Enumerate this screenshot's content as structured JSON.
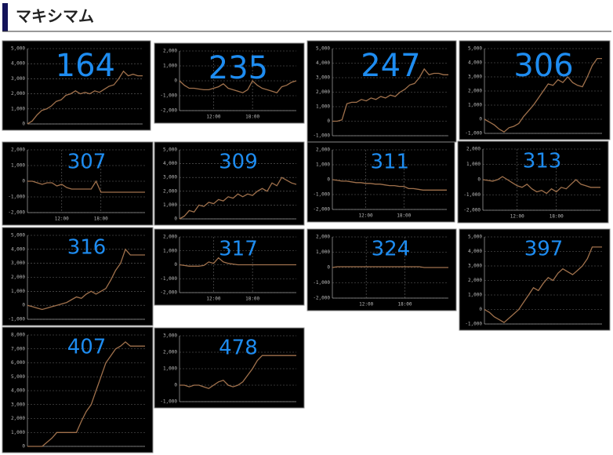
{
  "header": {
    "title": "マキシマム"
  },
  "chart_data": [
    {
      "type": "line",
      "title": "164",
      "color": "#a0714c",
      "ylim": [
        0,
        5000
      ],
      "yticks": [
        0,
        {
          "value": 1000,
          "label": "1,000"
        },
        {
          "value": 2000,
          "label": "2,000"
        },
        {
          "value": 3000,
          "label": "3,000"
        },
        {
          "value": 4000,
          "label": "4,000"
        },
        {
          "value": 5000,
          "label": "5,000"
        }
      ],
      "xlim": [
        0,
        24
      ],
      "grid": true,
      "values": [
        0,
        200,
        600,
        900,
        1000,
        1200,
        1500,
        1600,
        1900,
        2000,
        2200,
        2000,
        2100,
        2000,
        2200,
        2100,
        2300,
        2500,
        2600,
        3000,
        3500,
        3200,
        3300,
        3200,
        3200
      ]
    },
    {
      "type": "line",
      "title": "235",
      "color": "#a0714c",
      "ylim": [
        -2000,
        2000
      ],
      "yticks": [
        {
          "value": -2000,
          "label": "-2,000"
        },
        {
          "value": -1000,
          "label": "-1,000"
        },
        0,
        {
          "value": 1000,
          "label": "1,000"
        },
        {
          "value": 2000,
          "label": "2,000"
        }
      ],
      "xlim": [
        0,
        24
      ],
      "xticks": [
        {
          "value": 7,
          "label": "12:00"
        },
        {
          "value": 15,
          "label": "18:00"
        }
      ],
      "grid": true,
      "values": [
        0,
        -300,
        -500,
        -500,
        -550,
        -600,
        -600,
        -500,
        -400,
        -200,
        -500,
        -600,
        -700,
        -800,
        -600,
        0,
        -300,
        -500,
        -600,
        -700,
        -800,
        -400,
        -300,
        -100,
        0
      ]
    },
    {
      "type": "line",
      "title": "247",
      "color": "#a0714c",
      "ylim": [
        -1000,
        5000
      ],
      "yticks": [
        {
          "value": -1000,
          "label": "-1,000"
        },
        0,
        {
          "value": 1000,
          "label": "1,000"
        },
        {
          "value": 2000,
          "label": "2,000"
        },
        {
          "value": 3000,
          "label": "3,000"
        },
        {
          "value": 4000,
          "label": "4,000"
        },
        {
          "value": 5000,
          "label": "5,000"
        }
      ],
      "xlim": [
        0,
        24
      ],
      "grid": true,
      "values": [
        0,
        0,
        100,
        1200,
        1300,
        1300,
        1500,
        1400,
        1600,
        1500,
        1700,
        1600,
        1800,
        1700,
        2000,
        2200,
        2500,
        2600,
        3000,
        3600,
        3200,
        3300,
        3300,
        3200,
        3200
      ]
    },
    {
      "type": "line",
      "title": "306",
      "color": "#a0714c",
      "ylim": [
        -1000,
        5000
      ],
      "yticks": [
        {
          "value": -1000,
          "label": "-1,000"
        },
        0,
        {
          "value": 1000,
          "label": "1,000"
        },
        {
          "value": 2000,
          "label": "2,000"
        },
        {
          "value": 3000,
          "label": "3,000"
        },
        {
          "value": 4000,
          "label": "4,000"
        },
        {
          "value": 5000,
          "label": "5,000"
        }
      ],
      "xlim": [
        0,
        24
      ],
      "grid": true,
      "values": [
        0,
        -200,
        -400,
        -700,
        -900,
        -600,
        -500,
        -300,
        200,
        600,
        1000,
        1500,
        2000,
        2500,
        2400,
        2800,
        2600,
        3000,
        2600,
        2400,
        2300,
        3000,
        3800,
        4300,
        4300
      ]
    },
    {
      "type": "line",
      "title": "307",
      "color": "#a0714c",
      "ylim": [
        -2000,
        2000
      ],
      "yticks": [
        {
          "value": -2000,
          "label": "-2,000"
        },
        {
          "value": -1000,
          "label": "-1,000"
        },
        0,
        {
          "value": 1000,
          "label": "1,000"
        },
        {
          "value": 2000,
          "label": "2,000"
        }
      ],
      "xlim": [
        0,
        24
      ],
      "xticks": [
        {
          "value": 7,
          "label": "12:00"
        },
        {
          "value": 15,
          "label": "18:00"
        }
      ],
      "grid": true,
      "values": [
        0,
        0,
        -100,
        -200,
        -100,
        -100,
        -300,
        -200,
        -400,
        -500,
        -500,
        -500,
        -500,
        -500,
        0,
        -700,
        -700,
        -700,
        -700,
        -700,
        -700,
        -700,
        -700,
        -700,
        -700
      ]
    },
    {
      "type": "line",
      "title": "309",
      "color": "#a0714c",
      "ylim": [
        0,
        5000
      ],
      "yticks": [
        0,
        {
          "value": 1000,
          "label": "1,000"
        },
        {
          "value": 2000,
          "label": "2,000"
        },
        {
          "value": 3000,
          "label": "3,000"
        },
        {
          "value": 4000,
          "label": "4,000"
        },
        {
          "value": 5000,
          "label": "5,000"
        }
      ],
      "xlim": [
        0,
        24
      ],
      "grid": true,
      "values": [
        0,
        200,
        600,
        500,
        1000,
        900,
        1200,
        1100,
        1400,
        1300,
        1600,
        1500,
        1800,
        1600,
        1800,
        1700,
        2000,
        2200,
        2000,
        2600,
        2400,
        3000,
        2800,
        2600,
        2500
      ]
    },
    {
      "type": "line",
      "title": "311",
      "color": "#a0714c",
      "ylim": [
        -2000,
        2000
      ],
      "yticks": [
        {
          "value": -2000,
          "label": "-2,000"
        },
        {
          "value": -1000,
          "label": "-1,000"
        },
        0,
        {
          "value": 1000,
          "label": "1,000"
        },
        {
          "value": 2000,
          "label": "2,000"
        }
      ],
      "xlim": [
        0,
        24
      ],
      "xticks": [
        {
          "value": 7,
          "label": "12:00"
        },
        {
          "value": 15,
          "label": "18:00"
        }
      ],
      "grid": true,
      "values": [
        0,
        -50,
        -100,
        -100,
        -150,
        -200,
        -200,
        -250,
        -250,
        -300,
        -300,
        -350,
        -400,
        -400,
        -450,
        -450,
        -600,
        -600,
        -650,
        -700,
        -700,
        -700,
        -700,
        -700,
        -700
      ]
    },
    {
      "type": "line",
      "title": "313",
      "color": "#a0714c",
      "ylim": [
        -2000,
        2000
      ],
      "yticks": [
        {
          "value": -2000,
          "label": "-2,000"
        },
        {
          "value": -1000,
          "label": "-1,000"
        },
        0,
        {
          "value": 1000,
          "label": "1,000"
        },
        {
          "value": 2000,
          "label": "2,000"
        }
      ],
      "xlim": [
        0,
        24
      ],
      "xticks": [
        {
          "value": 7,
          "label": "12:00"
        },
        {
          "value": 15,
          "label": "18:00"
        }
      ],
      "grid": true,
      "values": [
        0,
        -50,
        -100,
        0,
        200,
        0,
        -200,
        -400,
        -500,
        -300,
        -600,
        -800,
        -700,
        -900,
        -600,
        -800,
        -500,
        -600,
        -300,
        0,
        -300,
        -400,
        -500,
        -500,
        -500
      ]
    },
    {
      "type": "line",
      "title": "316",
      "color": "#a0714c",
      "ylim": [
        -1000,
        5000
      ],
      "yticks": [
        {
          "value": -1000,
          "label": "-1,000"
        },
        0,
        {
          "value": 1000,
          "label": "1,000"
        },
        {
          "value": 2000,
          "label": "2,000"
        },
        {
          "value": 3000,
          "label": "3,000"
        },
        {
          "value": 4000,
          "label": "4,000"
        },
        {
          "value": 5000,
          "label": "5,000"
        }
      ],
      "xlim": [
        0,
        24
      ],
      "grid": true,
      "values": [
        0,
        -100,
        -200,
        -300,
        -200,
        -100,
        0,
        100,
        200,
        400,
        600,
        500,
        800,
        1000,
        800,
        1000,
        1200,
        1800,
        2500,
        3000,
        4000,
        3600,
        3600,
        3600,
        3600
      ]
    },
    {
      "type": "line",
      "title": "317",
      "color": "#a0714c",
      "ylim": [
        -2000,
        2000
      ],
      "yticks": [
        {
          "value": -2000,
          "label": "-2,000"
        },
        {
          "value": -1000,
          "label": "-1,000"
        },
        0,
        {
          "value": 1000,
          "label": "1,000"
        },
        {
          "value": 2000,
          "label": "2,000"
        }
      ],
      "xlim": [
        0,
        24
      ],
      "xticks": [
        {
          "value": 7,
          "label": "12:00"
        },
        {
          "value": 15,
          "label": "18:00"
        }
      ],
      "grid": true,
      "values": [
        0,
        -50,
        -100,
        -100,
        -100,
        -50,
        200,
        100,
        500,
        200,
        100,
        50,
        0,
        0,
        0,
        0,
        0,
        0,
        0,
        0,
        0,
        0,
        0,
        0,
        0
      ]
    },
    {
      "type": "line",
      "title": "324",
      "color": "#a0714c",
      "ylim": [
        -2000,
        2000
      ],
      "yticks": [
        {
          "value": -2000,
          "label": "-2,000"
        },
        {
          "value": -1000,
          "label": "-1,000"
        },
        0,
        {
          "value": 1000,
          "label": "1,000"
        },
        {
          "value": 2000,
          "label": "2,000"
        }
      ],
      "xlim": [
        0,
        24
      ],
      "xticks": [
        {
          "value": 7,
          "label": "12:00"
        },
        {
          "value": 15,
          "label": "18:00"
        }
      ],
      "grid": true,
      "values": [
        0,
        50,
        50,
        50,
        50,
        50,
        50,
        50,
        50,
        50,
        50,
        50,
        50,
        50,
        50,
        50,
        50,
        50,
        50,
        0,
        0,
        0,
        0,
        0,
        0
      ]
    },
    {
      "type": "line",
      "title": "397",
      "color": "#a0714c",
      "ylim": [
        -1000,
        5000
      ],
      "yticks": [
        {
          "value": -1000,
          "label": "-1,000"
        },
        0,
        {
          "value": 1000,
          "label": "1,000"
        },
        {
          "value": 2000,
          "label": "2,000"
        },
        {
          "value": 3000,
          "label": "3,000"
        },
        {
          "value": 4000,
          "label": "4,000"
        },
        {
          "value": 5000,
          "label": "5,000"
        }
      ],
      "xlim": [
        0,
        24
      ],
      "grid": true,
      "values": [
        0,
        -200,
        -500,
        -700,
        -900,
        -600,
        -300,
        0,
        500,
        1000,
        1500,
        1300,
        1800,
        2200,
        2000,
        2500,
        2800,
        2600,
        2400,
        2700,
        3000,
        3500,
        4300,
        4300,
        4300
      ]
    },
    {
      "type": "line",
      "title": "407",
      "color": "#a0714c",
      "ylim": [
        0,
        8000
      ],
      "yticks": [
        0,
        {
          "value": 1000,
          "label": "1,000"
        },
        {
          "value": 2000,
          "label": "2,000"
        },
        {
          "value": 3000,
          "label": "3,000"
        },
        {
          "value": 4000,
          "label": "4,000"
        },
        {
          "value": 5000,
          "label": "5,000"
        },
        {
          "value": 6000,
          "label": "6,000"
        },
        {
          "value": 7000,
          "label": "7,000"
        },
        {
          "value": 8000,
          "label": "8,000"
        }
      ],
      "xlim": [
        0,
        24
      ],
      "grid": true,
      "values": [
        0,
        0,
        0,
        0,
        300,
        600,
        1000,
        1000,
        1000,
        1000,
        1000,
        1800,
        2500,
        3000,
        4000,
        5000,
        6000,
        6500,
        7000,
        7200,
        7500,
        7200,
        7200,
        7200,
        7200
      ]
    },
    {
      "type": "line",
      "title": "478",
      "color": "#a0714c",
      "ylim": [
        -1000,
        3000
      ],
      "yticks": [
        {
          "value": -1000,
          "label": "-1,000"
        },
        0,
        {
          "value": 1000,
          "label": "1,000"
        },
        {
          "value": 2000,
          "label": "2,000"
        },
        {
          "value": 3000,
          "label": "3,000"
        }
      ],
      "xlim": [
        0,
        24
      ],
      "grid": true,
      "values": [
        0,
        0,
        -100,
        0,
        0,
        -100,
        -200,
        0,
        200,
        300,
        0,
        -100,
        0,
        200,
        600,
        1000,
        1500,
        1800,
        1800,
        1800,
        1800,
        1800,
        1800,
        1800,
        1800
      ]
    }
  ]
}
